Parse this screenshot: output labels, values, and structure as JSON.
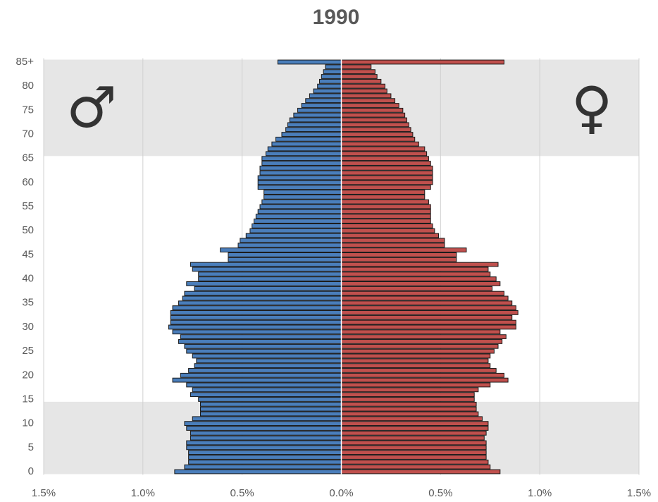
{
  "chart_data": {
    "type": "population-pyramid",
    "title": "1990",
    "categories": [
      "0",
      null,
      null,
      null,
      null,
      "5",
      null,
      null,
      null,
      null,
      "10",
      null,
      null,
      null,
      null,
      "15",
      null,
      null,
      null,
      null,
      "20",
      null,
      null,
      null,
      null,
      "25",
      null,
      null,
      null,
      null,
      "30",
      null,
      null,
      null,
      null,
      "35",
      null,
      null,
      null,
      null,
      "40",
      null,
      null,
      null,
      null,
      "45",
      null,
      null,
      null,
      null,
      "50",
      null,
      null,
      null,
      null,
      "55",
      null,
      null,
      null,
      null,
      "60",
      null,
      null,
      null,
      null,
      "65",
      null,
      null,
      null,
      null,
      "70",
      null,
      null,
      null,
      null,
      "75",
      null,
      null,
      null,
      null,
      "80",
      null,
      null,
      null,
      null,
      "85+"
    ],
    "series": [
      {
        "name": "♂",
        "color": "#4a7ebb",
        "values": [
          -0.84,
          -0.79,
          -0.77,
          -0.77,
          -0.77,
          -0.78,
          -0.78,
          -0.76,
          -0.76,
          -0.78,
          -0.79,
          -0.75,
          -0.71,
          -0.71,
          -0.71,
          -0.72,
          -0.76,
          -0.75,
          -0.78,
          -0.85,
          -0.81,
          -0.77,
          -0.74,
          -0.73,
          -0.75,
          -0.78,
          -0.79,
          -0.82,
          -0.81,
          -0.85,
          -0.87,
          -0.86,
          -0.86,
          -0.86,
          -0.85,
          -0.82,
          -0.8,
          -0.79,
          -0.74,
          -0.78,
          -0.72,
          -0.72,
          -0.75,
          -0.76,
          -0.57,
          -0.57,
          -0.61,
          -0.52,
          -0.51,
          -0.48,
          -0.46,
          -0.45,
          -0.44,
          -0.43,
          -0.42,
          -0.41,
          -0.4,
          -0.39,
          -0.39,
          -0.42,
          -0.42,
          -0.42,
          -0.41,
          -0.41,
          -0.4,
          -0.4,
          -0.38,
          -0.37,
          -0.35,
          -0.33,
          -0.3,
          -0.28,
          -0.27,
          -0.26,
          -0.24,
          -0.22,
          -0.2,
          -0.18,
          -0.16,
          -0.14,
          -0.12,
          -0.11,
          -0.1,
          -0.09,
          -0.08,
          -0.32
        ]
      },
      {
        "name": "♀",
        "color": "#c0504d",
        "values": [
          0.8,
          0.75,
          0.74,
          0.73,
          0.73,
          0.73,
          0.73,
          0.72,
          0.73,
          0.74,
          0.74,
          0.71,
          0.69,
          0.68,
          0.68,
          0.67,
          0.67,
          0.69,
          0.75,
          0.84,
          0.82,
          0.78,
          0.75,
          0.74,
          0.75,
          0.77,
          0.79,
          0.81,
          0.83,
          0.8,
          0.88,
          0.88,
          0.86,
          0.89,
          0.88,
          0.86,
          0.84,
          0.82,
          0.76,
          0.8,
          0.78,
          0.75,
          0.74,
          0.79,
          0.58,
          0.58,
          0.63,
          0.52,
          0.52,
          0.49,
          0.47,
          0.46,
          0.45,
          0.45,
          0.45,
          0.45,
          0.44,
          0.42,
          0.42,
          0.45,
          0.46,
          0.46,
          0.46,
          0.46,
          0.45,
          0.44,
          0.43,
          0.42,
          0.39,
          0.37,
          0.36,
          0.35,
          0.34,
          0.33,
          0.32,
          0.31,
          0.29,
          0.27,
          0.25,
          0.23,
          0.22,
          0.2,
          0.18,
          0.17,
          0.15,
          0.82
        ]
      }
    ],
    "xlim": [
      -1.5,
      1.5
    ],
    "xticks": [
      {
        "value": -1.5,
        "label": "1.5%"
      },
      {
        "value": -1.0,
        "label": "1.0%"
      },
      {
        "value": -0.5,
        "label": "0.5%"
      },
      {
        "value": 0,
        "label": "0.0%"
      },
      {
        "value": 0.5,
        "label": "0.5%"
      },
      {
        "value": 1.0,
        "label": "1.0%"
      },
      {
        "value": 1.5,
        "label": "1.5%"
      }
    ],
    "grid": true,
    "shaded_ranges": [
      [
        0,
        14
      ],
      [
        66,
        85
      ]
    ]
  }
}
